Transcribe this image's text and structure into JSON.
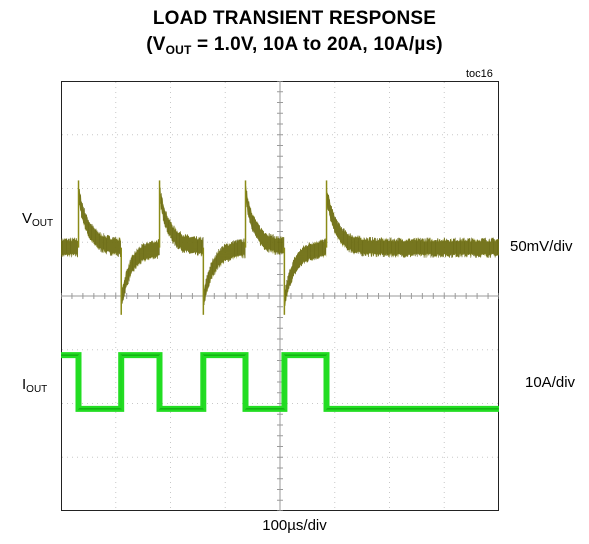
{
  "title": {
    "line1": "LOAD TRANSIENT RESPONSE",
    "line2_open": "(V",
    "line2_sub": "OUT",
    "line2_rest": " = 1.0V, 10A to 20A, 10A/µs)"
  },
  "toc_label": "toc16",
  "x_scale_label": "100µs/div",
  "channels": {
    "vout": {
      "label_main": "V",
      "label_sub": "OUT",
      "scale": "50mV/div",
      "color": "#8b8b17"
    },
    "iout": {
      "label_main": "I",
      "label_sub": "OUT",
      "scale": "10A/div",
      "color": "#22dd22"
    }
  },
  "chart_data": {
    "type": "line",
    "title": "LOAD TRANSIENT RESPONSE (VOUT = 1.0V, 10A to 20A, 10A/µs)",
    "x_unit": "µs",
    "x_div": 100,
    "x_divisions": 8,
    "y_divisions": 8,
    "grid": true,
    "load_step_times_us": [
      32,
      110,
      180,
      260,
      337,
      408,
      485
    ],
    "series": [
      {
        "name": "VOUT",
        "scale": "50mV/div",
        "baseline_div": 4.9,
        "overshoot_div": 1.0,
        "undershoot_div": -1.0,
        "recovery_tau_us": 18,
        "noise_band_div": 0.3
      },
      {
        "name": "IOUT",
        "scale": "10A/div",
        "levels_A": [
          20,
          10
        ],
        "level_pattern": [
          20,
          10,
          20,
          10,
          20,
          10,
          20,
          10
        ],
        "high_div": 2.9,
        "low_div": 1.9
      }
    ]
  }
}
